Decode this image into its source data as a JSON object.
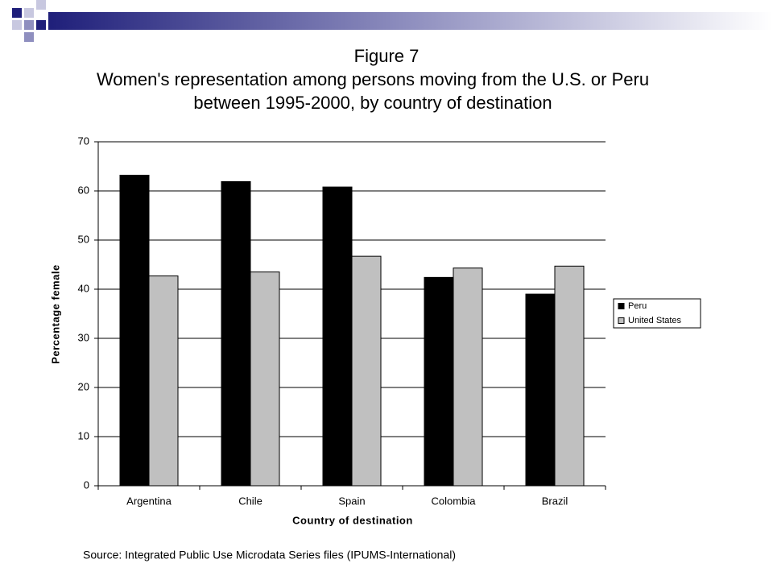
{
  "chart_data": {
    "type": "bar",
    "title": "Figure 7",
    "subtitle": [
      "Women's representation among persons moving from the U.S. or Peru",
      "between 1995-2000, by country of destination"
    ],
    "x_label": "Country of destination",
    "y_label": "Percentage female",
    "source": "Source: Integrated Public Use Microdata Series files (IPUMS-International)",
    "categories": [
      "Argentina",
      "Chile",
      "Spain",
      "Colombia",
      "Brazil"
    ],
    "series": [
      {
        "name": "Peru",
        "color": "#000000",
        "values": [
          63.2,
          61.9,
          60.8,
          42.4,
          39.0
        ]
      },
      {
        "name": "United States",
        "color": "#c0c0c0",
        "values": [
          42.7,
          43.5,
          46.7,
          44.3,
          44.7
        ]
      }
    ],
    "ylim": [
      0,
      70
    ],
    "yticks": [
      0,
      10,
      20,
      30,
      40,
      50,
      60,
      70
    ],
    "grid": true,
    "legend": "right"
  }
}
